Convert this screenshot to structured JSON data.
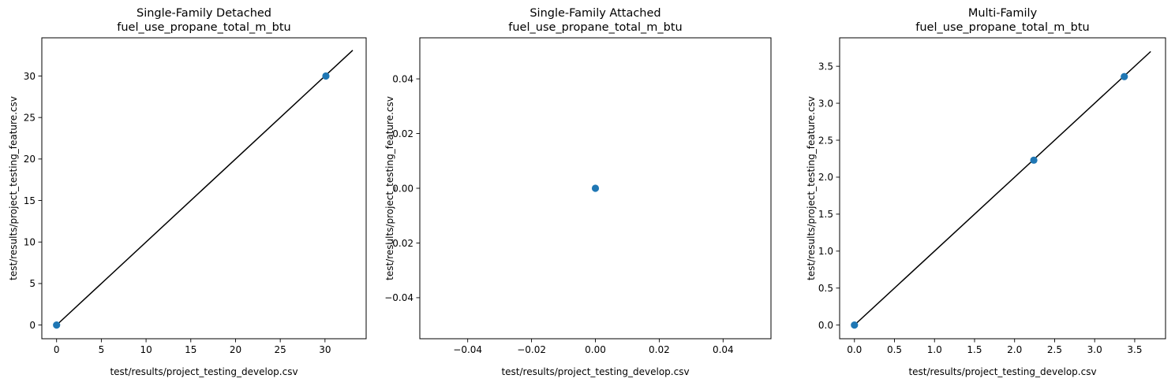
{
  "chart_data": [
    {
      "type": "scatter",
      "title": "Single-Family Detached",
      "subtitle": "fuel_use_propane_total_m_btu",
      "xlabel": "test/results/project_testing_develop.csv",
      "ylabel": "test/results/project_testing_feature.csv",
      "xlim": [
        -1.65,
        34.6
      ],
      "ylim": [
        -1.65,
        34.6
      ],
      "xticks": [
        0,
        5,
        10,
        15,
        20,
        25,
        30
      ],
      "yticks": [
        0,
        5,
        10,
        15,
        20,
        25,
        30
      ],
      "points": [
        {
          "x": 0,
          "y": 0
        },
        {
          "x": 30.1,
          "y": 30.0
        }
      ],
      "reference_line": [
        [
          0,
          0
        ],
        [
          33.1,
          33.1
        ]
      ],
      "point_color": "#1f77b4",
      "line_color": "#000000",
      "grid": false
    },
    {
      "type": "scatter",
      "title": "Single-Family Attached",
      "subtitle": "fuel_use_propane_total_m_btu",
      "xlabel": "test/results/project_testing_develop.csv",
      "ylabel": "test/results/project_testing_feature.csv",
      "xlim": [
        -0.055,
        0.055
      ],
      "ylim": [
        -0.055,
        0.055
      ],
      "xticks": [
        -0.04,
        -0.02,
        0.0,
        0.02,
        0.04
      ],
      "xtick_labels": [
        "−0.04",
        "−0.02",
        "0.00",
        "0.02",
        "0.04"
      ],
      "yticks": [
        -0.04,
        -0.02,
        0.0,
        0.02,
        0.04
      ],
      "ytick_labels": [
        "−0.04",
        "−0.02",
        "0.00",
        "0.02",
        "0.04"
      ],
      "points": [
        {
          "x": 0,
          "y": 0
        }
      ],
      "reference_line": [],
      "point_color": "#1f77b4",
      "line_color": "#000000",
      "grid": false
    },
    {
      "type": "scatter",
      "title": "Multi-Family",
      "subtitle": "fuel_use_propane_total_m_btu",
      "xlabel": "test/results/project_testing_develop.csv",
      "ylabel": "test/results/project_testing_feature.csv",
      "xlim": [
        -0.185,
        3.885
      ],
      "ylim": [
        -0.185,
        3.885
      ],
      "xticks": [
        0.0,
        0.5,
        1.0,
        1.5,
        2.0,
        2.5,
        3.0,
        3.5
      ],
      "xtick_labels": [
        "0.0",
        "0.5",
        "1.0",
        "1.5",
        "2.0",
        "2.5",
        "3.0",
        "3.5"
      ],
      "yticks": [
        0.0,
        0.5,
        1.0,
        1.5,
        2.0,
        2.5,
        3.0,
        3.5
      ],
      "ytick_labels": [
        "0.0",
        "0.5",
        "1.0",
        "1.5",
        "2.0",
        "2.5",
        "3.0",
        "3.5"
      ],
      "points": [
        {
          "x": 0,
          "y": 0
        },
        {
          "x": 2.24,
          "y": 2.23
        },
        {
          "x": 3.37,
          "y": 3.36
        }
      ],
      "reference_line": [
        [
          0,
          0
        ],
        [
          3.7,
          3.7
        ]
      ],
      "point_color": "#1f77b4",
      "line_color": "#000000",
      "grid": false
    }
  ]
}
